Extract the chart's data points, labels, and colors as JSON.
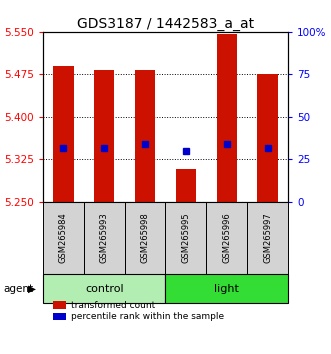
{
  "title": "GDS3187 / 1442583_a_at",
  "samples": [
    "GSM265984",
    "GSM265993",
    "GSM265998",
    "GSM265995",
    "GSM265996",
    "GSM265997"
  ],
  "group_spans": [
    {
      "label": "control",
      "start": 0,
      "end": 2,
      "color": "#B2EEB2"
    },
    {
      "label": "light",
      "start": 3,
      "end": 5,
      "color": "#33DD33"
    }
  ],
  "bar_tops": [
    5.49,
    5.483,
    5.483,
    5.308,
    5.547,
    5.475
  ],
  "bar_bottom": 5.25,
  "blue_dots": [
    5.345,
    5.345,
    5.352,
    5.34,
    5.352,
    5.345
  ],
  "ylim_left": [
    5.25,
    5.55
  ],
  "yticks_left": [
    5.25,
    5.325,
    5.4,
    5.475,
    5.55
  ],
  "ylim_right": [
    0,
    100
  ],
  "yticks_right": [
    0,
    25,
    50,
    75,
    100
  ],
  "bar_color": "#CC1100",
  "dot_color": "#0000CC",
  "bar_width": 0.5,
  "legend_items": [
    "transformed count",
    "percentile rank within the sample"
  ],
  "legend_colors": [
    "#CC1100",
    "#0000CC"
  ],
  "agent_label": "agent",
  "title_fontsize": 10,
  "tick_fontsize": 7.5,
  "sample_fontsize": 6,
  "group_fontsize": 8,
  "legend_fontsize": 6.5
}
